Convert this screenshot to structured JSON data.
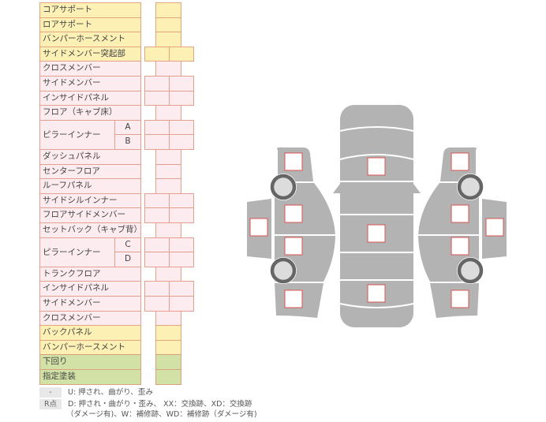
{
  "parts": [
    {
      "label": "コアサポート",
      "color": "yellow",
      "cells": 1
    },
    {
      "label": "ロアサポート",
      "color": "yellow",
      "cells": 1
    },
    {
      "label": "バンパーホースメント",
      "color": "yellow",
      "cells": 1
    },
    {
      "label": "サイドメンバー突起部",
      "color": "yellow",
      "cells": 2
    },
    {
      "label": "クロスメンバー",
      "color": "pink",
      "cells": 1
    },
    {
      "label": "サイドメンバー",
      "color": "pink",
      "cells": 2
    },
    {
      "label": "インサイドパネル",
      "color": "pink",
      "cells": 2
    },
    {
      "label": "フロア（キャブ床）",
      "color": "pink",
      "cells": 1
    },
    {
      "label": "ピラーインナー",
      "color": "pink",
      "cells": 2,
      "subs": [
        "A",
        "B"
      ]
    },
    {
      "label": "ダッシュパネル",
      "color": "pink",
      "cells": 1
    },
    {
      "label": "センターフロア",
      "color": "pink",
      "cells": 1
    },
    {
      "label": "ルーフパネル",
      "color": "pink",
      "cells": 1
    },
    {
      "label": "サイドシルインナー",
      "color": "pink",
      "cells": 2
    },
    {
      "label": "フロアサイドメンバー",
      "color": "pink",
      "cells": 2
    },
    {
      "label": "セットバック（キャブ背）",
      "color": "pink",
      "cells": 1
    },
    {
      "label": "ピラーインナー",
      "color": "pink",
      "cells": 2,
      "subs": [
        "C",
        "D"
      ]
    },
    {
      "label": "トランクフロア",
      "color": "pink",
      "cells": 1
    },
    {
      "label": "インサイドパネル",
      "color": "pink",
      "cells": 2
    },
    {
      "label": "サイドメンバー",
      "color": "pink",
      "cells": 2
    },
    {
      "label": "クロスメンバー",
      "color": "pink",
      "cells": 1
    },
    {
      "label": "バックパネル",
      "color": "yellow",
      "cells": 1
    },
    {
      "label": "バンパーホースメント",
      "color": "yellow",
      "cells": 1
    },
    {
      "label": "下回り",
      "color": "green",
      "cells": 1
    },
    {
      "label": "指定塗装",
      "color": "green",
      "cells": 1
    }
  ],
  "legend": [
    {
      "key": "-",
      "text": "U: 押され、曲がり、歪み"
    },
    {
      "key": "R点",
      "text": "D: 押され・曲がり・歪み、 XX：交換跡、XD：交換跡"
    },
    {
      "key": "",
      "text": "（ダメージ有)、W：補修跡、WD：補修跡（ダメージ有)"
    }
  ],
  "colors": {
    "body": "#b3b3b3",
    "box_border": "#d9534f",
    "wheel": "#666666",
    "hub": "#dcdcdc"
  }
}
